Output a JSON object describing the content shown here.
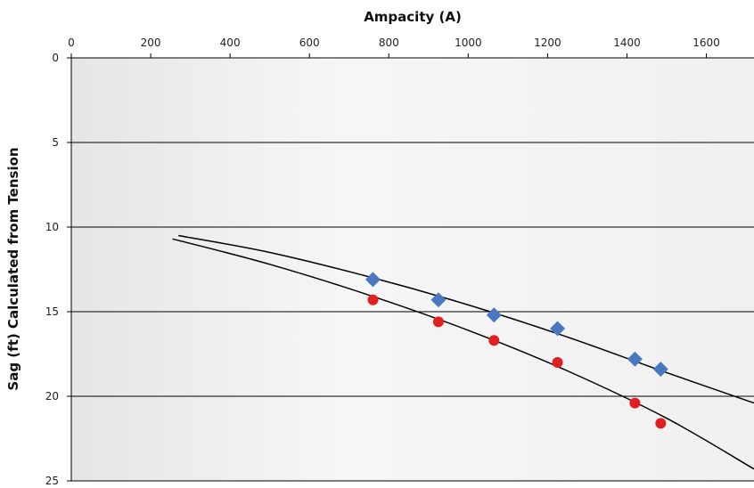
{
  "chart_data": {
    "type": "scatter",
    "title": "",
    "xlabel": "Ampacity (A)",
    "ylabel": "Sag (ft) Calculated from Tension",
    "x_axis_position": "top",
    "y_axis_inverted": true,
    "xlim": [
      0,
      1720
    ],
    "ylim": [
      0,
      25
    ],
    "x_ticks": [
      0,
      200,
      400,
      600,
      800,
      1000,
      1200,
      1400,
      1600
    ],
    "y_ticks": [
      0,
      5,
      10,
      15,
      20,
      25
    ],
    "grid": {
      "horizontal": true,
      "vertical": false
    },
    "legend": "none",
    "background": "light gray gradient",
    "series": [
      {
        "marker": "diamond",
        "color": "#4a78c0",
        "points": [
          {
            "x": 760,
            "y": 13.1
          },
          {
            "x": 925,
            "y": 14.3
          },
          {
            "x": 1065,
            "y": 15.2
          },
          {
            "x": 1225,
            "y": 16.0
          },
          {
            "x": 1420,
            "y": 17.8
          },
          {
            "x": 1485,
            "y": 18.4
          }
        ]
      },
      {
        "marker": "circle",
        "color": "#e02020",
        "points": [
          {
            "x": 760,
            "y": 14.3
          },
          {
            "x": 925,
            "y": 15.6
          },
          {
            "x": 1065,
            "y": 16.7
          },
          {
            "x": 1225,
            "y": 18.0
          },
          {
            "x": 1420,
            "y": 20.4
          },
          {
            "x": 1485,
            "y": 21.6
          }
        ]
      },
      {
        "marker": "none",
        "line": "curve",
        "color": "#000000",
        "points": [
          {
            "x": 270,
            "y": 10.5
          },
          {
            "x": 500,
            "y": 11.5
          },
          {
            "x": 760,
            "y": 13.0
          },
          {
            "x": 1000,
            "y": 14.6
          },
          {
            "x": 1250,
            "y": 16.5
          },
          {
            "x": 1500,
            "y": 18.6
          },
          {
            "x": 1720,
            "y": 20.4
          }
        ]
      },
      {
        "marker": "none",
        "line": "curve",
        "color": "#000000",
        "points": [
          {
            "x": 255,
            "y": 10.7
          },
          {
            "x": 500,
            "y": 12.2
          },
          {
            "x": 760,
            "y": 14.1
          },
          {
            "x": 1000,
            "y": 16.1
          },
          {
            "x": 1250,
            "y": 18.5
          },
          {
            "x": 1500,
            "y": 21.3
          },
          {
            "x": 1720,
            "y": 24.3
          }
        ]
      }
    ]
  }
}
